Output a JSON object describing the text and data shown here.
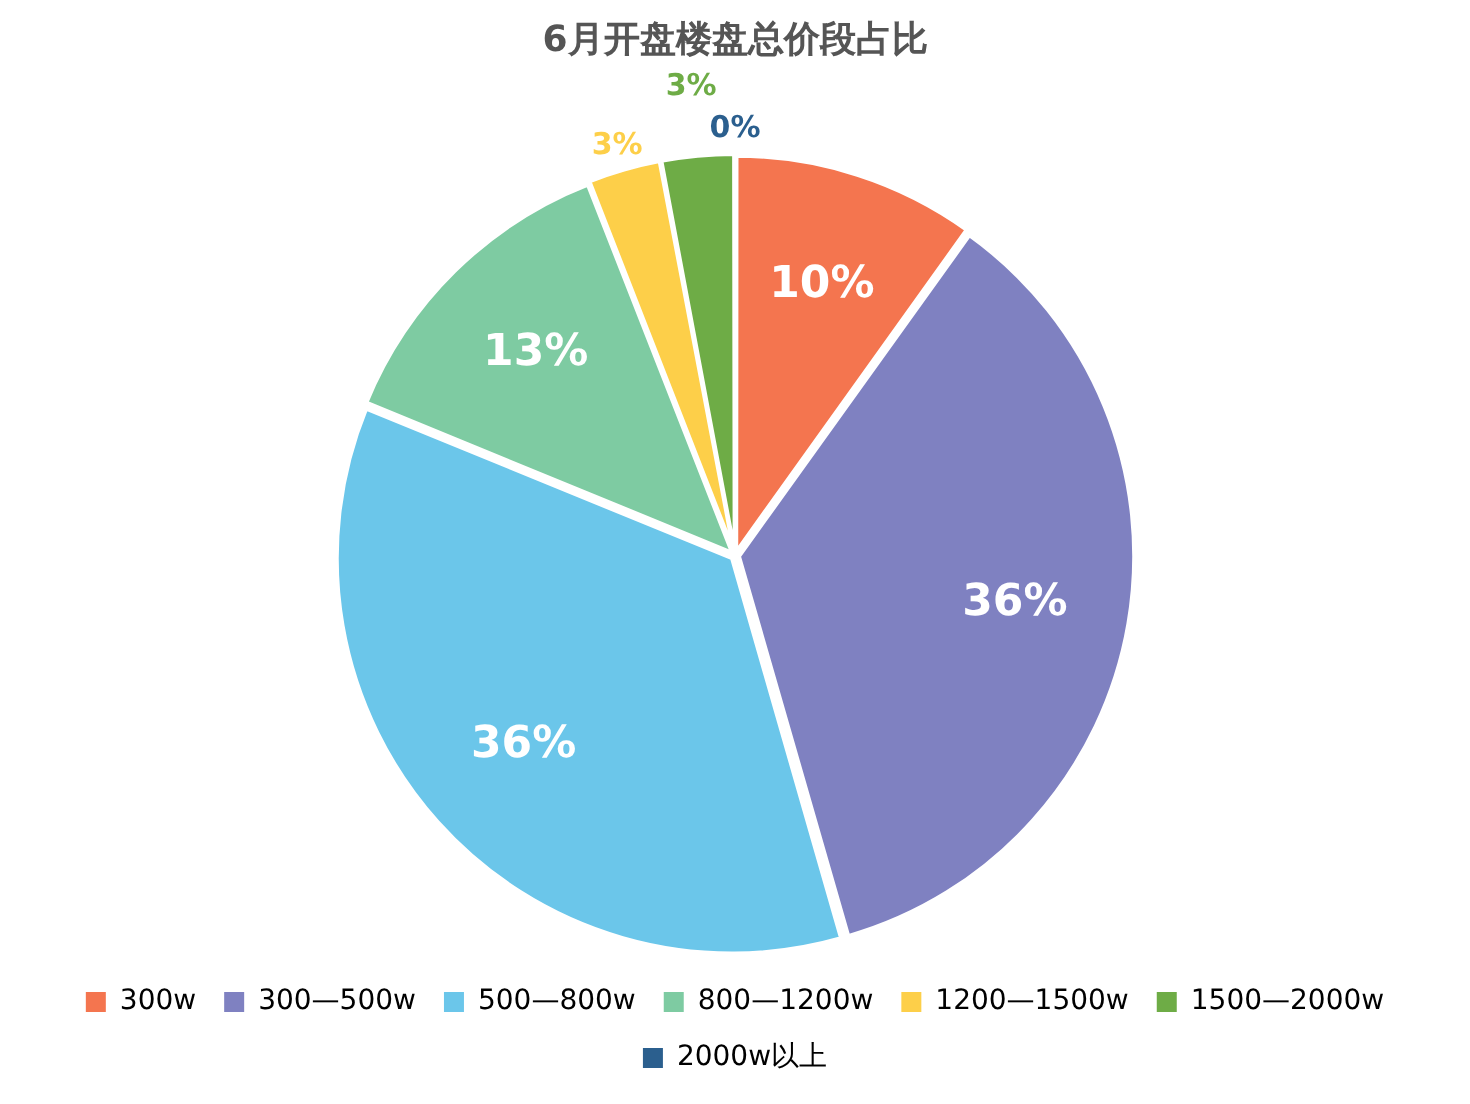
{
  "chart_data": {
    "type": "pie",
    "title": "6月开盘楼盘总价段占比",
    "categories": [
      "300w",
      "300—500w",
      "500—800w",
      "800—1200w",
      "1200—1500w",
      "1500—2000w",
      "2000w以上"
    ],
    "values": [
      10,
      36,
      36,
      13,
      3,
      3,
      0
    ],
    "colors": [
      "#f4754f",
      "#7f81c1",
      "#6bc6ea",
      "#7ecba2",
      "#fdcf49",
      "#6eac46",
      "#2b5f8e"
    ],
    "value_labels": [
      "10%",
      "36%",
      "36%",
      "13%",
      "3%",
      "3%",
      "0%"
    ],
    "legend": "bottom"
  }
}
